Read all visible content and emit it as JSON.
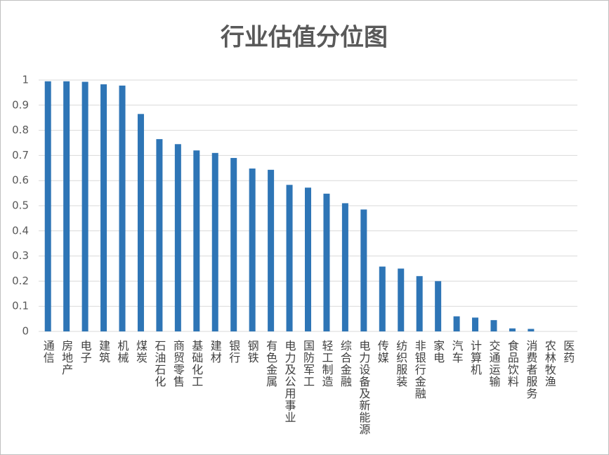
{
  "chart_data": {
    "type": "bar",
    "title": "行业估值分位图",
    "categories": [
      "通信",
      "房地产",
      "电子",
      "建筑",
      "机械",
      "煤炭",
      "石油石化",
      "商贸零售",
      "基础化工",
      "建材",
      "银行",
      "钢铁",
      "有色金属",
      "电力及公用事业",
      "国防军工",
      "轻工制造",
      "综合金融",
      "电力设备及新能源",
      "传媒",
      "纺织服装",
      "非银行金融",
      "家电",
      "汽车",
      "计算机",
      "交通运输",
      "食品饮料",
      "消费者服务",
      "农林牧渔",
      "医药"
    ],
    "values": [
      0.995,
      0.995,
      0.993,
      0.983,
      0.978,
      0.865,
      0.765,
      0.745,
      0.72,
      0.71,
      0.69,
      0.648,
      0.643,
      0.583,
      0.572,
      0.548,
      0.51,
      0.485,
      0.258,
      0.25,
      0.22,
      0.2,
      0.06,
      0.055,
      0.045,
      0.012,
      0.01,
      0,
      0
    ],
    "color": "#2e75b6",
    "ylim": [
      0,
      1
    ],
    "yticks": [
      0,
      0.1,
      0.2,
      0.3,
      0.4,
      0.5,
      0.6,
      0.7,
      0.8,
      0.9,
      1
    ],
    "grid": true
  }
}
